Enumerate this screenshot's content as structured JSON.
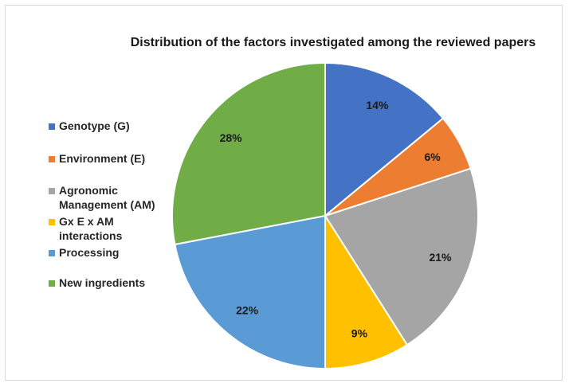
{
  "chart_data": {
    "type": "pie",
    "title": "Distribution of the factors investigated among the reviewed papers",
    "legend_position": "left",
    "slices": [
      {
        "label": "Genotype (G)",
        "legend_lines": [
          "Genotype (G)"
        ],
        "value": 14,
        "value_label": "14%",
        "color": "#4472C4"
      },
      {
        "label": "Environment (E)",
        "legend_lines": [
          "Environment (E)"
        ],
        "value": 6,
        "value_label": "6%",
        "color": "#ED7D31"
      },
      {
        "label": "Agronomic Management (AM)",
        "legend_lines": [
          "Agronomic",
          "Management (AM)"
        ],
        "value": 21,
        "value_label": "21%",
        "color": "#A5A5A5"
      },
      {
        "label": "Gx E x AM interactions",
        "legend_lines": [
          "Gx E x AM",
          "interactions"
        ],
        "value": 9,
        "value_label": "9%",
        "color": "#FFC000"
      },
      {
        "label": "Processing",
        "legend_lines": [
          "Processing"
        ],
        "value": 22,
        "value_label": "22%",
        "color": "#5B9BD5"
      },
      {
        "label": "New ingredients",
        "legend_lines": [
          "New ingredients"
        ],
        "value": 28,
        "value_label": "28%",
        "color": "#70AD47"
      }
    ]
  }
}
